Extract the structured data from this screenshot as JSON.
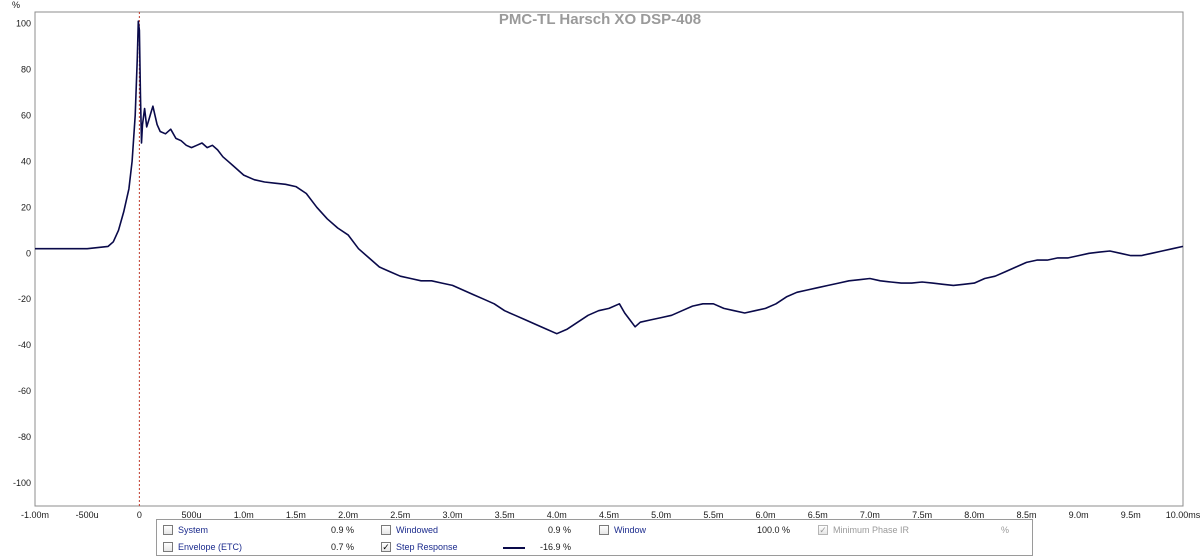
{
  "chart_data": {
    "type": "line",
    "title": "PMC-TL Harsch XO DSP-408",
    "xlabel": "",
    "ylabel": "%",
    "xlim": [
      -1.0,
      10.0
    ],
    "ylim": [
      -110,
      105
    ],
    "x_unit": "ms",
    "grid": true,
    "x_ticks": [
      -1.0,
      -0.5,
      0,
      0.5,
      1.0,
      1.5,
      2.0,
      2.5,
      3.0,
      3.5,
      4.0,
      4.5,
      5.0,
      5.5,
      6.0,
      6.5,
      7.0,
      7.5,
      8.0,
      8.5,
      9.0,
      9.5,
      10.0
    ],
    "x_tick_labels": [
      "-1.00m",
      "-500u",
      "0",
      "500u",
      "1.0m",
      "1.5m",
      "2.0m",
      "2.5m",
      "3.0m",
      "3.5m",
      "4.0m",
      "4.5m",
      "5.0m",
      "5.5m",
      "6.0m",
      "6.5m",
      "7.0m",
      "7.5m",
      "8.0m",
      "8.5m",
      "9.0m",
      "9.5m",
      "10.00ms"
    ],
    "y_ticks": [
      100,
      80,
      60,
      40,
      20,
      0,
      -20,
      -40,
      -60,
      -80,
      -100
    ],
    "y_tick_labels": [
      "100",
      "80",
      "60",
      "40",
      "20",
      "0",
      "-20",
      "-40",
      "-60",
      "-80",
      "-100"
    ],
    "series": [
      {
        "name": "Step Response",
        "color": "#0a0a4a",
        "x": [
          -1.0,
          -0.5,
          -0.3,
          -0.25,
          -0.2,
          -0.15,
          -0.1,
          -0.07,
          -0.04,
          -0.02,
          -0.01,
          0.0,
          0.01,
          0.02,
          0.03,
          0.05,
          0.07,
          0.09,
          0.11,
          0.13,
          0.15,
          0.17,
          0.2,
          0.25,
          0.3,
          0.35,
          0.4,
          0.45,
          0.5,
          0.55,
          0.6,
          0.65,
          0.7,
          0.75,
          0.8,
          0.85,
          0.9,
          1.0,
          1.1,
          1.2,
          1.3,
          1.4,
          1.5,
          1.6,
          1.7,
          1.8,
          1.9,
          2.0,
          2.1,
          2.2,
          2.3,
          2.4,
          2.5,
          2.6,
          2.7,
          2.8,
          2.9,
          3.0,
          3.1,
          3.2,
          3.3,
          3.4,
          3.5,
          3.6,
          3.7,
          3.8,
          3.9,
          4.0,
          4.1,
          4.2,
          4.3,
          4.4,
          4.5,
          4.6,
          4.65,
          4.7,
          4.75,
          4.8,
          4.9,
          5.0,
          5.1,
          5.2,
          5.3,
          5.4,
          5.5,
          5.6,
          5.7,
          5.8,
          5.9,
          6.0,
          6.1,
          6.2,
          6.3,
          6.4,
          6.5,
          6.6,
          6.7,
          6.8,
          6.9,
          7.0,
          7.1,
          7.2,
          7.3,
          7.4,
          7.5,
          7.6,
          7.7,
          7.8,
          7.9,
          8.0,
          8.1,
          8.2,
          8.3,
          8.4,
          8.5,
          8.6,
          8.7,
          8.8,
          8.9,
          9.0,
          9.1,
          9.2,
          9.3,
          9.4,
          9.5,
          9.6,
          9.7,
          9.8,
          9.9,
          10.0
        ],
        "y": [
          2,
          2,
          3,
          5,
          10,
          18,
          28,
          40,
          60,
          85,
          101,
          97,
          70,
          48,
          56,
          63,
          55,
          58,
          61,
          64,
          60,
          56,
          53,
          52,
          54,
          50,
          49,
          47,
          46,
          47,
          48,
          46,
          47,
          45,
          42,
          40,
          38,
          34,
          32,
          31,
          30.5,
          30,
          29,
          26,
          20,
          15,
          11,
          8,
          2,
          -2,
          -6,
          -8,
          -10,
          -11,
          -12,
          -12,
          -13,
          -14,
          -16,
          -18,
          -20,
          -22,
          -25,
          -27,
          -29,
          -31,
          -33,
          -35,
          -33,
          -30,
          -27,
          -25,
          -24,
          -22,
          -26,
          -29,
          -32,
          -30,
          -29,
          -28,
          -27,
          -25,
          -23,
          -22,
          -22,
          -24,
          -25,
          -26,
          -25,
          -24,
          -22,
          -19,
          -17,
          -16,
          -15,
          -14,
          -13,
          -12,
          -11.5,
          -11,
          -12,
          -12.5,
          -13,
          -13,
          -12.5,
          -13,
          -13.5,
          -14,
          -13.5,
          -13,
          -11,
          -10,
          -8,
          -6,
          -4,
          -3,
          -3,
          -2,
          -2,
          -1,
          0,
          0.5,
          1,
          0,
          -1,
          -1,
          0,
          1,
          2,
          3
        ]
      }
    ]
  },
  "legend": {
    "items": [
      {
        "label": "System",
        "value": "0.9 %",
        "checked": false,
        "enabled": true
      },
      {
        "label": "Envelope (ETC)",
        "value": "0.7 %",
        "checked": false,
        "enabled": true
      },
      {
        "label": "Windowed",
        "value": "0.9 %",
        "checked": false,
        "enabled": true
      },
      {
        "label": "Step Response",
        "value": "-16.9 %",
        "checked": true,
        "enabled": true
      },
      {
        "label": "Window",
        "value": "100.0 %",
        "checked": false,
        "enabled": true
      },
      {
        "label": "Minimum Phase IR",
        "value": "%",
        "checked": true,
        "enabled": false
      }
    ],
    "check_glyph": "✓"
  },
  "marker": {
    "x": 0,
    "color": "#c0392b"
  }
}
